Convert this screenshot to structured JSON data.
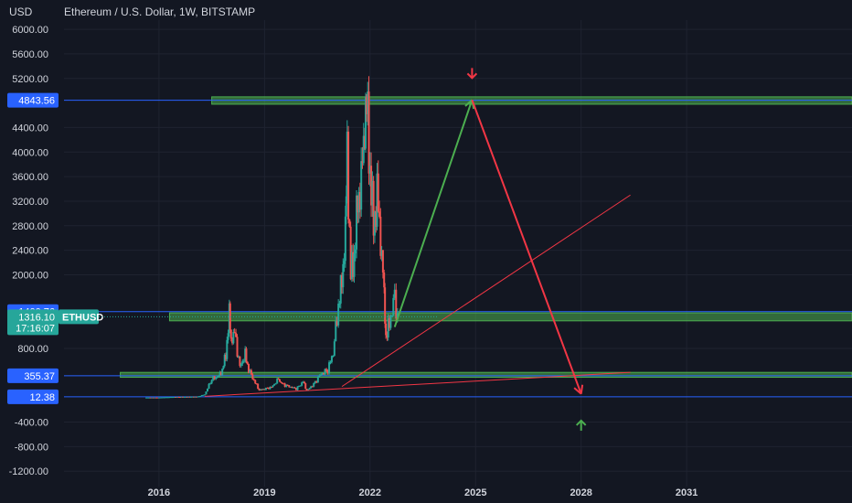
{
  "header": {
    "currency": "USD",
    "title": "Ethereum / U.S. Dollar, 1W, BITSTAMP"
  },
  "colors": {
    "background": "#131722",
    "up": "#26a69a",
    "down": "#ef5350",
    "zone": "#4caf50",
    "hline": "#2962ff",
    "trend": "#f23645",
    "arrow_up": "#4caf50",
    "arrow_down": "#f23645"
  },
  "chart_data": {
    "type": "candlestick",
    "y_ticks": [
      "6000.00",
      "5600.00",
      "5200.00",
      "4400.00",
      "4000.00",
      "3600.00",
      "3200.00",
      "2800.00",
      "2400.00",
      "2000.00",
      "800.00",
      "-400.00",
      "-800.00",
      "-1200.00"
    ],
    "x_ticks": [
      "2016",
      "2019",
      "2022",
      "2025",
      "2028",
      "2031"
    ],
    "ylim": [
      -1450,
      6150
    ],
    "xlim": [
      2013.3,
      2035.7
    ],
    "price_tags": [
      {
        "value": 4843.56,
        "label": "4843.56",
        "kind": "line"
      },
      {
        "value": 1400.76,
        "label": "1400.76",
        "kind": "line"
      },
      {
        "value": 355.37,
        "label": "355.37",
        "kind": "line"
      },
      {
        "value": 12.38,
        "label": "12.38",
        "kind": "line"
      }
    ],
    "current": {
      "symbol": "ETHUSD",
      "price": "1316.10",
      "countdown": "17:16:07"
    },
    "zones": [
      {
        "from_x": 2017.5,
        "to_x": 2035.7,
        "low": 4780,
        "high": 4900
      },
      {
        "from_x": 2016.3,
        "to_x": 2035.7,
        "low": 1250,
        "high": 1380
      },
      {
        "from_x": 2014.9,
        "to_x": 2035.7,
        "low": 330,
        "high": 410
      }
    ],
    "horizontal_lines": [
      4843.56,
      1400.76,
      355.37,
      12.38
    ],
    "trendlines": [
      {
        "x1": 2021.2,
        "y1": 180,
        "x2": 2029.4,
        "y2": 3300
      },
      {
        "x1": 2017.3,
        "y1": 20,
        "x2": 2029.4,
        "y2": 410
      }
    ],
    "projection": {
      "up": {
        "x1": 2022.7,
        "y1": 1150,
        "x2": 2024.9,
        "y2": 4850
      },
      "down": {
        "x1": 2024.9,
        "y1": 4850,
        "x2": 2028.0,
        "y2": 60
      }
    },
    "markers": [
      {
        "x": 2024.9,
        "y": 5280,
        "dir": "down"
      },
      {
        "x": 2028.0,
        "y": -450,
        "dir": "up"
      }
    ],
    "price_path": [
      [
        2015.6,
        1
      ],
      [
        2016.0,
        1
      ],
      [
        2016.4,
        10
      ],
      [
        2016.8,
        12
      ],
      [
        2017.1,
        15
      ],
      [
        2017.3,
        50
      ],
      [
        2017.5,
        300
      ],
      [
        2017.7,
        350
      ],
      [
        2017.8,
        450
      ],
      [
        2017.9,
        700
      ],
      [
        2018.0,
        1350
      ],
      [
        2018.05,
        950
      ],
      [
        2018.15,
        1050
      ],
      [
        2018.3,
        500
      ],
      [
        2018.45,
        700
      ],
      [
        2018.55,
        450
      ],
      [
        2018.7,
        280
      ],
      [
        2018.85,
        120
      ],
      [
        2019.0,
        140
      ],
      [
        2019.2,
        170
      ],
      [
        2019.4,
        300
      ],
      [
        2019.5,
        220
      ],
      [
        2019.7,
        180
      ],
      [
        2019.9,
        140
      ],
      [
        2020.1,
        260
      ],
      [
        2020.2,
        110
      ],
      [
        2020.4,
        220
      ],
      [
        2020.6,
        380
      ],
      [
        2020.8,
        450
      ],
      [
        2020.95,
        730
      ],
      [
        2021.1,
        1500
      ],
      [
        2021.2,
        1900
      ],
      [
        2021.3,
        2700
      ],
      [
        2021.35,
        4000
      ],
      [
        2021.45,
        2000
      ],
      [
        2021.55,
        2300
      ],
      [
        2021.65,
        3200
      ],
      [
        2021.75,
        3500
      ],
      [
        2021.85,
        4500
      ],
      [
        2021.9,
        4780
      ],
      [
        2022.0,
        3700
      ],
      [
        2022.1,
        2800
      ],
      [
        2022.2,
        3300
      ],
      [
        2022.3,
        2600
      ],
      [
        2022.4,
        1700
      ],
      [
        2022.45,
        1000
      ],
      [
        2022.55,
        1200
      ],
      [
        2022.7,
        1650
      ],
      [
        2022.78,
        1316
      ]
    ]
  }
}
